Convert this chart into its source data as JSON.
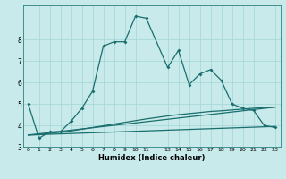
{
  "xlabel": "Humidex (Indice chaleur)",
  "bg_color": "#c8eaea",
  "grid_color": "#a8d8d8",
  "line_color": "#1a6e6e",
  "spine_color": "#2a8080",
  "xlim": [
    -0.5,
    23.5
  ],
  "ylim": [
    3.0,
    9.6
  ],
  "yticks": [
    3,
    4,
    5,
    6,
    7,
    8
  ],
  "xticks": [
    0,
    1,
    2,
    3,
    4,
    5,
    6,
    7,
    8,
    9,
    10,
    11,
    13,
    14,
    15,
    16,
    17,
    18,
    19,
    20,
    21,
    22,
    23
  ],
  "xtick_labels": [
    "0",
    "1",
    "2",
    "3",
    "4",
    "5",
    "6",
    "7",
    "8",
    "9",
    "10",
    "11",
    "13",
    "14",
    "15",
    "16",
    "17",
    "18",
    "19",
    "20",
    "21",
    "22",
    "23"
  ],
  "main_x": [
    0,
    1,
    2,
    3,
    4,
    5,
    6,
    7,
    8,
    9,
    10,
    11,
    13,
    14,
    15,
    16,
    17,
    18,
    19,
    20,
    21,
    22,
    23
  ],
  "main_y": [
    5.0,
    3.4,
    3.7,
    3.7,
    4.2,
    4.8,
    5.6,
    7.7,
    7.9,
    7.9,
    9.1,
    9.0,
    6.7,
    7.5,
    5.9,
    6.4,
    6.6,
    6.1,
    5.0,
    4.8,
    4.7,
    4.0,
    3.9
  ],
  "line2_x": [
    0,
    1,
    2,
    3,
    4,
    5,
    6,
    7,
    8,
    9,
    10,
    11,
    13,
    14,
    15,
    16,
    17,
    18,
    19,
    20,
    21,
    22,
    23
  ],
  "line2_y": [
    3.55,
    3.57,
    3.62,
    3.68,
    3.74,
    3.82,
    3.9,
    3.98,
    4.06,
    4.14,
    4.22,
    4.3,
    4.44,
    4.5,
    4.55,
    4.6,
    4.65,
    4.68,
    4.72,
    4.76,
    4.8,
    4.83,
    4.85
  ],
  "line3_x": [
    0,
    23
  ],
  "line3_y": [
    3.55,
    4.85
  ],
  "line4_x": [
    0,
    23
  ],
  "line4_y": [
    3.55,
    3.95
  ]
}
